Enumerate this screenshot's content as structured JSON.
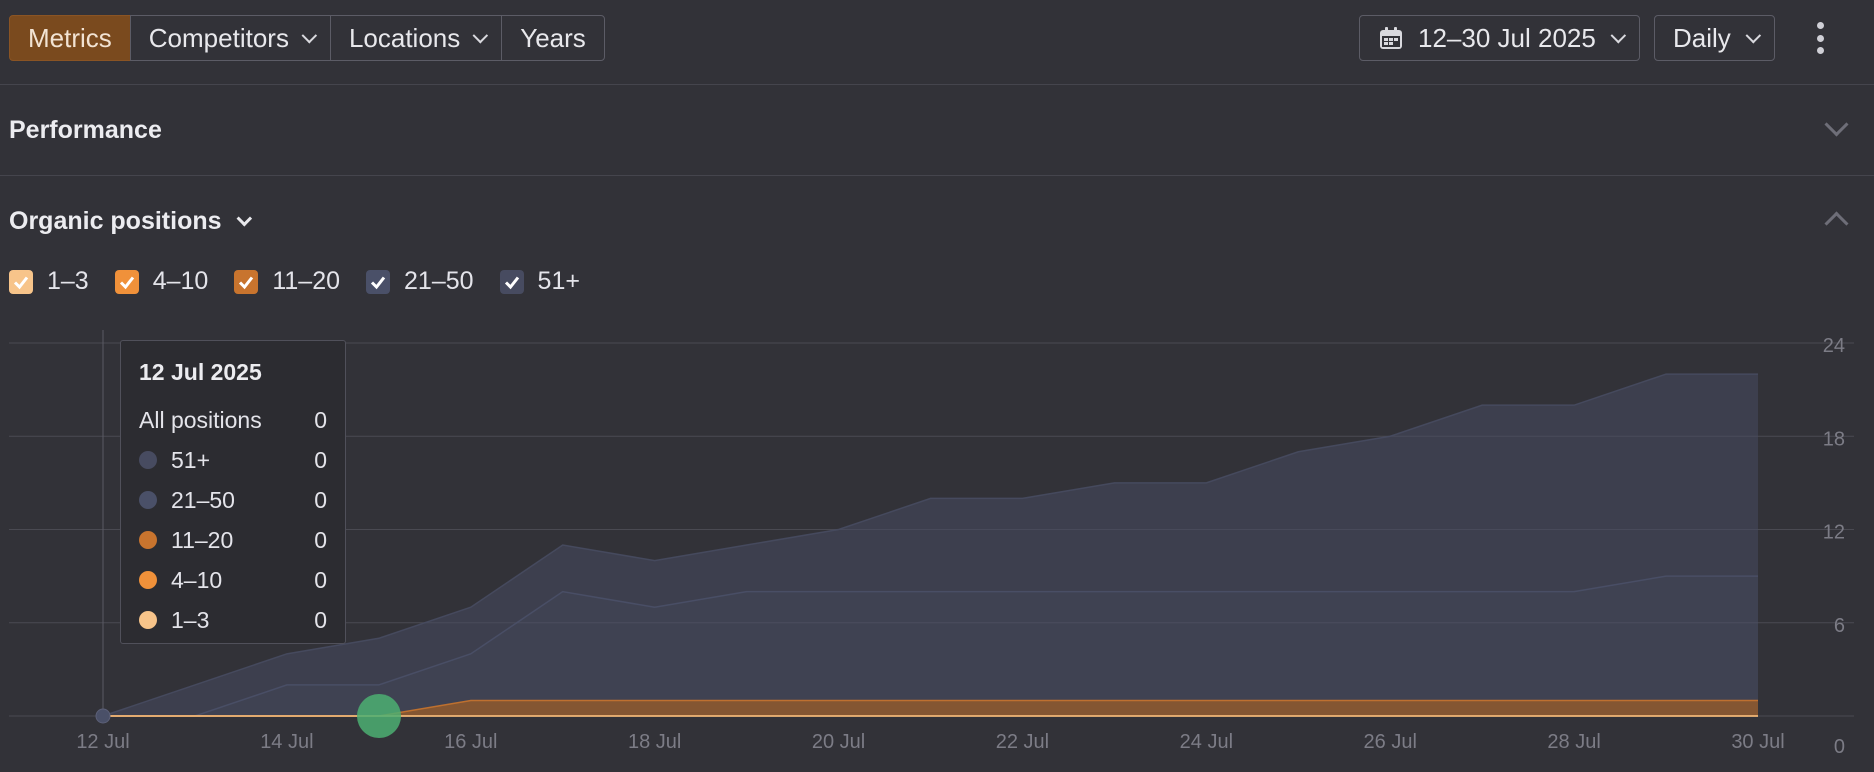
{
  "toolbar": {
    "tabs": [
      {
        "label": "Metrics",
        "active": true,
        "dropdown": false
      },
      {
        "label": "Competitors",
        "active": false,
        "dropdown": true
      },
      {
        "label": "Locations",
        "active": false,
        "dropdown": true
      },
      {
        "label": "Years",
        "active": false,
        "dropdown": false
      }
    ],
    "date_range": "12–30 Jul 2025",
    "granularity": "Daily"
  },
  "sections": {
    "performance": "Performance",
    "organic": "Organic positions"
  },
  "legend": [
    {
      "label": "1–3",
      "color": "#f7c48a",
      "checked": true
    },
    {
      "label": "4–10",
      "color": "#f0913a",
      "checked": true
    },
    {
      "label": "11–20",
      "color": "#c8742e",
      "checked": true
    },
    {
      "label": "21–50",
      "color": "#4a5068",
      "checked": true
    },
    {
      "label": "51+",
      "color": "#474b60",
      "checked": true
    }
  ],
  "tooltip": {
    "date": "12 Jul 2025",
    "total_label": "All positions",
    "total_value": "0",
    "rows": [
      {
        "label": "51+",
        "value": "0",
        "color": "#474b60"
      },
      {
        "label": "21–50",
        "value": "0",
        "color": "#4a5068"
      },
      {
        "label": "11–20",
        "value": "0",
        "color": "#c8742e"
      },
      {
        "label": "4–10",
        "value": "0",
        "color": "#f0913a"
      },
      {
        "label": "1–3",
        "value": "0",
        "color": "#f7c48a"
      }
    ]
  },
  "chart_data": {
    "type": "area",
    "stacked": true,
    "x": [
      "12 Jul",
      "13 Jul",
      "14 Jul",
      "15 Jul",
      "16 Jul",
      "17 Jul",
      "18 Jul",
      "19 Jul",
      "20 Jul",
      "21 Jul",
      "22 Jul",
      "23 Jul",
      "24 Jul",
      "25 Jul",
      "26 Jul",
      "27 Jul",
      "28 Jul",
      "29 Jul",
      "30 Jul"
    ],
    "x_tick_labels": [
      "12 Jul",
      "14 Jul",
      "16 Jul",
      "18 Jul",
      "20 Jul",
      "22 Jul",
      "24 Jul",
      "26 Jul",
      "28 Jul",
      "30 Jul"
    ],
    "y_ticks": [
      0,
      6,
      12,
      18,
      24
    ],
    "ylim": [
      0,
      24
    ],
    "y_axis_side": "right",
    "grid": true,
    "series": [
      {
        "name": "1–3",
        "color": "#f7c48a",
        "values": [
          0,
          0,
          0,
          0,
          0,
          0,
          0,
          0,
          0,
          0,
          0,
          0,
          0,
          0,
          0,
          0,
          0,
          0,
          0
        ]
      },
      {
        "name": "4–10",
        "color": "#f0913a",
        "values": [
          0,
          0,
          0,
          0,
          0,
          0,
          0,
          0,
          0,
          0,
          0,
          0,
          0,
          0,
          0,
          0,
          0,
          0,
          0
        ]
      },
      {
        "name": "11–20",
        "color": "#c8742e",
        "values": [
          0,
          0,
          0,
          0,
          1,
          1,
          1,
          1,
          1,
          1,
          1,
          1,
          1,
          1,
          1,
          1,
          1,
          1,
          1
        ]
      },
      {
        "name": "21–50",
        "color": "#4a5068",
        "values": [
          0,
          0,
          2,
          2,
          3,
          7,
          6,
          7,
          7,
          7,
          7,
          7,
          7,
          7,
          7,
          7,
          7,
          8,
          8
        ]
      },
      {
        "name": "51+",
        "color": "#474b60",
        "values": [
          0,
          2,
          2,
          3,
          3,
          3,
          3,
          3,
          4,
          6,
          6,
          7,
          7,
          9,
          10,
          12,
          12,
          13,
          13
        ]
      }
    ]
  }
}
